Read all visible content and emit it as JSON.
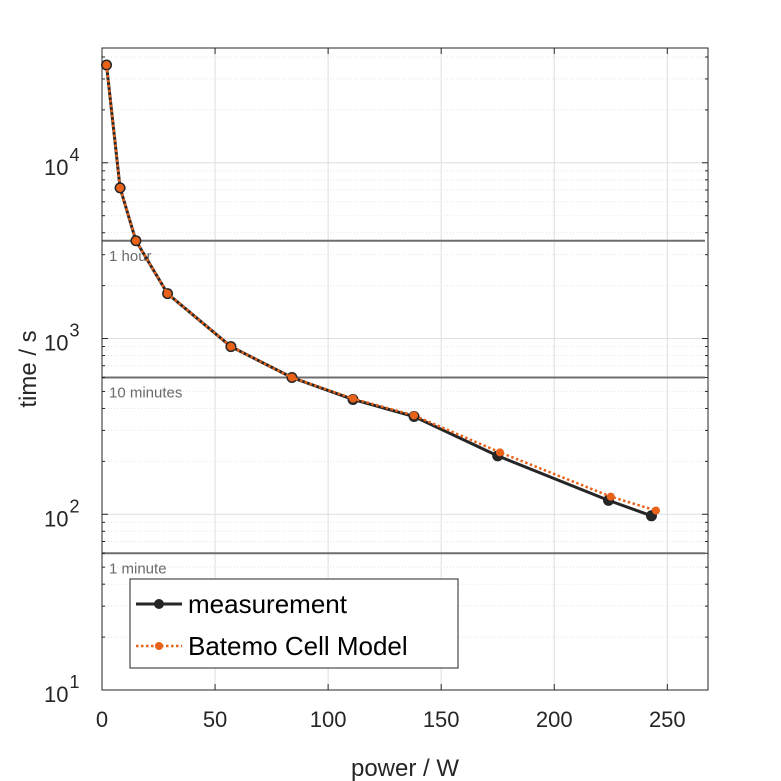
{
  "chart_data": {
    "type": "line",
    "xlabel": "power / W",
    "ylabel": "time / s",
    "xlim": [
      0,
      268
    ],
    "ylim": [
      10,
      45000
    ],
    "yscale": "log",
    "grid": true,
    "x_ticks": [
      "0",
      "50",
      "100",
      "150",
      "200",
      "250"
    ],
    "y_ticks": [
      {
        "base": "10",
        "exp": "1"
      },
      {
        "base": "10",
        "exp": "2"
      },
      {
        "base": "10",
        "exp": "3"
      },
      {
        "base": "10",
        "exp": "4"
      }
    ],
    "legend_position": "lower-left",
    "series": [
      {
        "name": "measurement",
        "color": "#262626",
        "style": "solid",
        "x": [
          2,
          8,
          15,
          29,
          57,
          84,
          111,
          138,
          175,
          224,
          243
        ],
        "y": [
          36000,
          7200,
          3600,
          1800,
          900,
          600,
          450,
          360,
          215,
          120,
          98
        ]
      },
      {
        "name": "Batemo Cell Model",
        "color": "#e8621a",
        "style": "dotted",
        "x": [
          2,
          8,
          15,
          29,
          57,
          84,
          111,
          138,
          176,
          225,
          245
        ],
        "y": [
          36000,
          7200,
          3600,
          1800,
          900,
          600,
          455,
          365,
          225,
          126,
          105
        ]
      }
    ],
    "reference_lines": [
      {
        "value": 3600,
        "label": "1 hour"
      },
      {
        "value": 600,
        "label": "10 minutes"
      },
      {
        "value": 60,
        "label": "1 minute"
      }
    ]
  }
}
